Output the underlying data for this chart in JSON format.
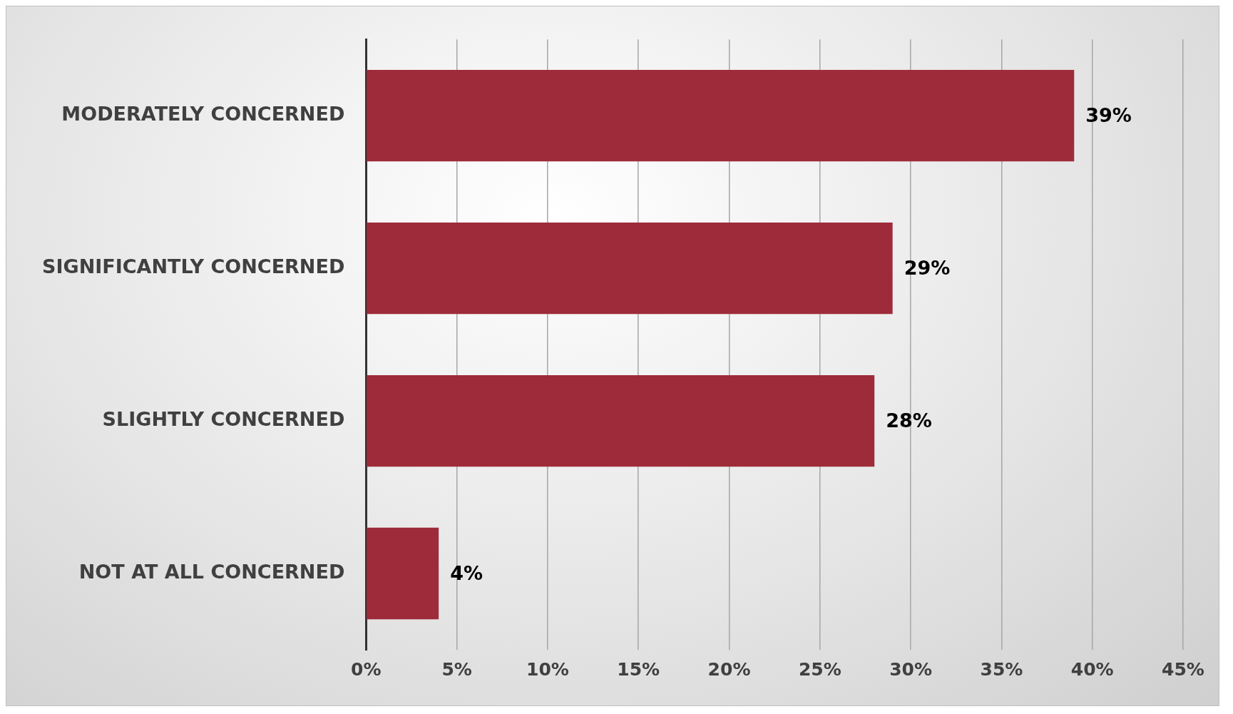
{
  "chart_data": {
    "type": "bar",
    "orientation": "horizontal",
    "categories": [
      "MODERATELY CONCERNED",
      "SIGNIFICANTLY CONCERNED",
      "SLIGHTLY CONCERNED",
      "NOT AT ALL CONCERNED"
    ],
    "values": [
      39,
      29,
      28,
      4
    ],
    "value_labels": [
      "39%",
      "29%",
      "28%",
      "4%"
    ],
    "color": "#9e2b3a",
    "xlim": [
      0,
      45
    ],
    "xticks": [
      {
        "value": 0,
        "label": "0%"
      },
      {
        "value": 5,
        "label": "5%"
      },
      {
        "value": 10,
        "label": "10%"
      },
      {
        "value": 15,
        "label": "15%"
      },
      {
        "value": 20,
        "label": "20%"
      },
      {
        "value": 25,
        "label": "25%"
      },
      {
        "value": 30,
        "label": "30%"
      },
      {
        "value": 35,
        "label": "35%"
      },
      {
        "value": 40,
        "label": "40%"
      },
      {
        "value": 45,
        "label": "45%"
      }
    ],
    "grid": "x",
    "legend": false
  }
}
